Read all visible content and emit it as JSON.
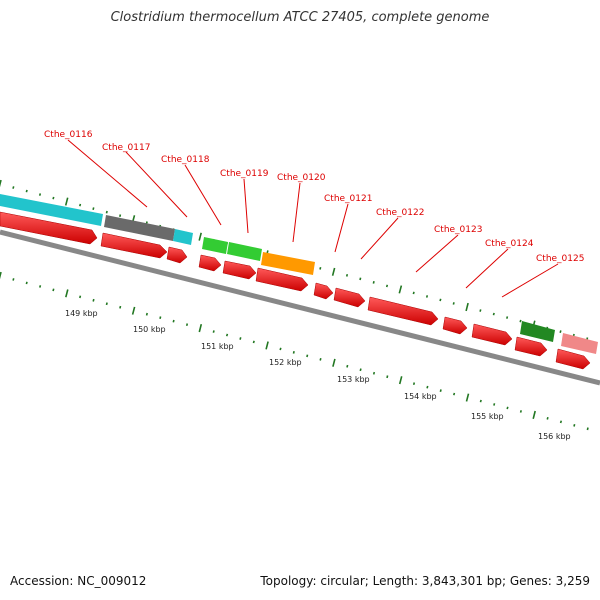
{
  "title": "Clostridium thermocellum ATCC 27405, complete genome",
  "footer": {
    "accession": "Accession: NC_009012",
    "summary": "Topology: circular; Length: 3,843,301 bp; Genes: 3,259"
  },
  "gene_labels": [
    "Cthe_0116",
    "Cthe_0117",
    "Cthe_0118",
    "Cthe_0119",
    "Cthe_0120",
    "Cthe_0121",
    "Cthe_0122",
    "Cthe_0123",
    "Cthe_0124",
    "Cthe_0125"
  ],
  "kbp_ticks": [
    "149 kbp",
    "150 kbp",
    "151 kbp",
    "152 kbp",
    "153 kbp",
    "154 kbp",
    "155 kbp",
    "156 kbp"
  ],
  "colors": {
    "cds": "#ee0000",
    "cyan": "#22c4cc",
    "gray": "#707070",
    "green": "#33cc33",
    "orange": "#ff9900",
    "dark_green": "#228822",
    "pink": "#f08888",
    "tick": "#227722",
    "backbone": "#777777"
  }
}
